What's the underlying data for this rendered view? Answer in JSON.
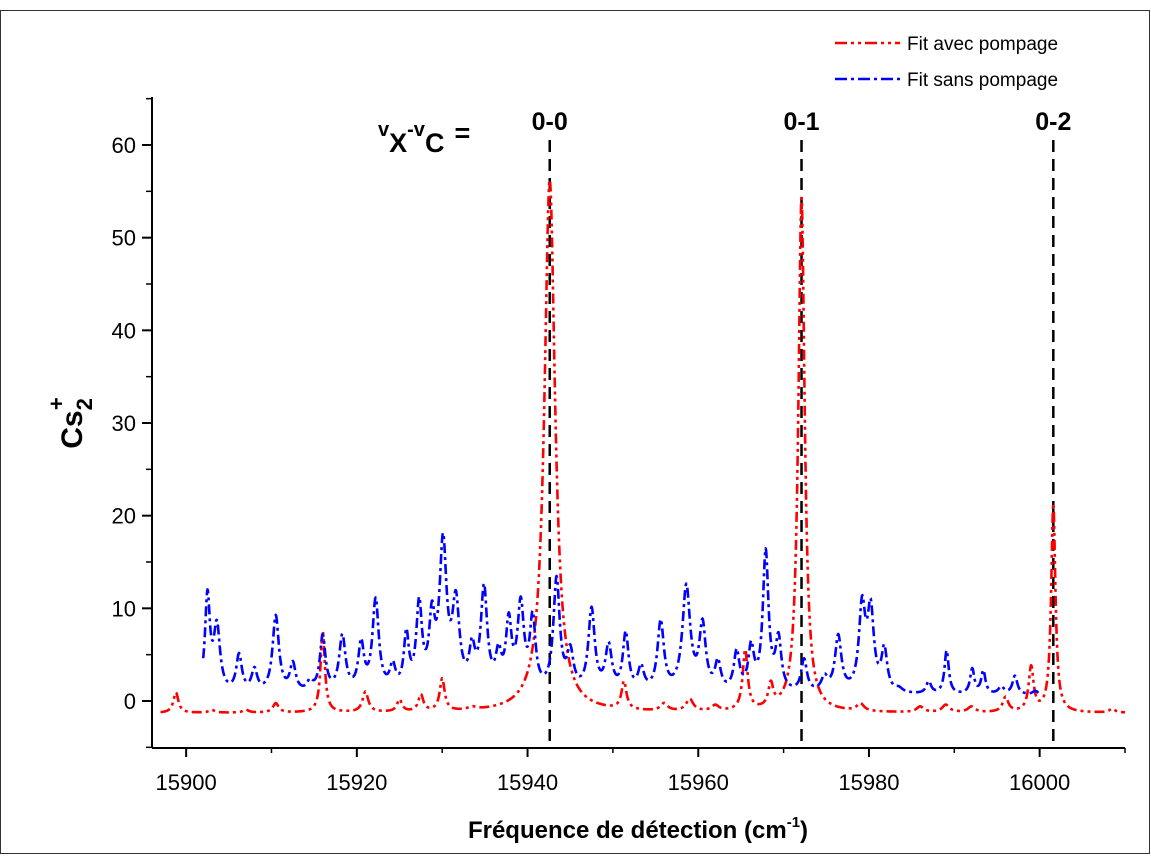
{
  "chart_data": {
    "type": "line",
    "xlabel": "Fréquence de détection (cm",
    "xlabel_sup": "-1",
    "xlabel_close": ")",
    "ylabel_base": "Cs",
    "ylabel_sub": "2",
    "ylabel_sup": "+",
    "xlim": [
      15896,
      16010
    ],
    "ylim": [
      -5,
      65
    ],
    "xticks": [
      15900,
      15920,
      15940,
      15960,
      15980,
      16000
    ],
    "xtick_labels": [
      "15900",
      "15920",
      "15940",
      "15960",
      "15980",
      "16000"
    ],
    "yticks": [
      0,
      10,
      20,
      30,
      40,
      50,
      60
    ],
    "ytick_labels": [
      "0",
      "10",
      "20",
      "30",
      "40",
      "50",
      "60"
    ],
    "grid": false,
    "legend_position": "top-right",
    "series": [
      {
        "name": "Fit avec pompage",
        "color": "#ff0000",
        "dash": "dash-dot-dot",
        "baseline": -1.3,
        "peaks": [
          [
            15898.8,
            2.2,
            0.35
          ],
          [
            15903,
            0.3,
            0.4
          ],
          [
            15907,
            0.3,
            0.4
          ],
          [
            15910.5,
            1.0,
            0.4
          ],
          [
            15916,
            8.8,
            0.3
          ],
          [
            15921,
            2.2,
            0.4
          ],
          [
            15925,
            1.3,
            0.35
          ],
          [
            15927.5,
            1.8,
            0.35
          ],
          [
            15930,
            3.5,
            0.35
          ],
          [
            15933.5,
            0.3,
            0.6
          ],
          [
            15942.6,
            57.5,
            0.75
          ],
          [
            15951.3,
            3.0,
            0.35
          ],
          [
            15956,
            0.8,
            0.5
          ],
          [
            15959,
            1.3,
            0.5
          ],
          [
            15962,
            0.6,
            0.5
          ],
          [
            15965.5,
            6.5,
            0.35
          ],
          [
            15968.5,
            2.5,
            0.35
          ],
          [
            15972.1,
            55.5,
            0.45
          ],
          [
            15979,
            0.8,
            0.5
          ],
          [
            15986,
            0.6,
            0.5
          ],
          [
            15989,
            0.8,
            0.5
          ],
          [
            15992,
            0.6,
            0.5
          ],
          [
            15996,
            1.6,
            0.4
          ],
          [
            15999,
            4.8,
            0.35
          ],
          [
            16001.6,
            22.5,
            0.3
          ],
          [
            16008.5,
            0.4,
            0.4
          ]
        ],
        "range": [
          15897,
          16010
        ]
      },
      {
        "name": "Fit sans pompage",
        "color": "#0000ff",
        "dash": "dash-dot",
        "baseline": 0.6,
        "peaks": [
          [
            15902.5,
            10.3,
            0.35
          ],
          [
            15903.6,
            7.0,
            0.45
          ],
          [
            15906.2,
            4.0,
            0.4
          ],
          [
            15908,
            2.4,
            0.4
          ],
          [
            15910.5,
            8.3,
            0.45
          ],
          [
            15912.5,
            3.0,
            0.4
          ],
          [
            15914.5,
            1.0,
            0.4
          ],
          [
            15916,
            6.0,
            0.4
          ],
          [
            15918.3,
            6.0,
            0.45
          ],
          [
            15920.5,
            5.0,
            0.4
          ],
          [
            15922.2,
            9.8,
            0.45
          ],
          [
            15924.2,
            2.5,
            0.4
          ],
          [
            15925.8,
            5.8,
            0.35
          ],
          [
            15927.3,
            9.0,
            0.4
          ],
          [
            15928.8,
            7.0,
            0.4
          ],
          [
            15930.1,
            15.5,
            0.5
          ],
          [
            15931.6,
            9.0,
            0.5
          ],
          [
            15933.5,
            4.0,
            0.4
          ],
          [
            15934.9,
            10.8,
            0.45
          ],
          [
            15936.6,
            3.5,
            0.4
          ],
          [
            15937.8,
            7.0,
            0.4
          ],
          [
            15939.2,
            9.0,
            0.45
          ],
          [
            15940.6,
            7.5,
            0.4
          ],
          [
            15943.4,
            12.0,
            0.45
          ],
          [
            15945,
            4.0,
            0.45
          ],
          [
            15947.5,
            8.8,
            0.45
          ],
          [
            15949.5,
            4.8,
            0.45
          ],
          [
            15951.5,
            6.2,
            0.4
          ],
          [
            15953.3,
            2.5,
            0.4
          ],
          [
            15955.6,
            7.5,
            0.45
          ],
          [
            15958.6,
            11.3,
            0.55
          ],
          [
            15960.5,
            7.0,
            0.45
          ],
          [
            15962.3,
            3.0,
            0.4
          ],
          [
            15964.5,
            4.2,
            0.4
          ],
          [
            15966.2,
            4.6,
            0.4
          ],
          [
            15967.9,
            15.0,
            0.4
          ],
          [
            15969.4,
            5.5,
            0.4
          ],
          [
            15972.4,
            3.5,
            0.4
          ],
          [
            15974.8,
            1.5,
            0.45
          ],
          [
            15976.4,
            6.0,
            0.45
          ],
          [
            15979.2,
            9.0,
            0.45
          ],
          [
            15980.2,
            8.5,
            0.45
          ],
          [
            15981.8,
            4.5,
            0.4
          ],
          [
            15983.5,
            0.4,
            0.5
          ],
          [
            15987,
            1.3,
            0.35
          ],
          [
            15989.1,
            4.7,
            0.3
          ],
          [
            15992.1,
            2.7,
            0.3
          ],
          [
            15993.4,
            2.5,
            0.3
          ],
          [
            15995.5,
            0.8,
            0.4
          ],
          [
            15997.1,
            2.0,
            0.35
          ],
          [
            15999.5,
            0.4,
            0.4
          ]
        ],
        "range": [
          15902,
          16000
        ]
      }
    ],
    "annotations": {
      "prefix": "v",
      "prefix_sub1": "X",
      "dash": "-v",
      "prefix_sub2": "C",
      "equals": "=",
      "labels": [
        {
          "text": "0-0",
          "x": 15942.6
        },
        {
          "text": "0-1",
          "x": 15972.1
        },
        {
          "text": "0-2",
          "x": 16001.6
        }
      ]
    }
  }
}
